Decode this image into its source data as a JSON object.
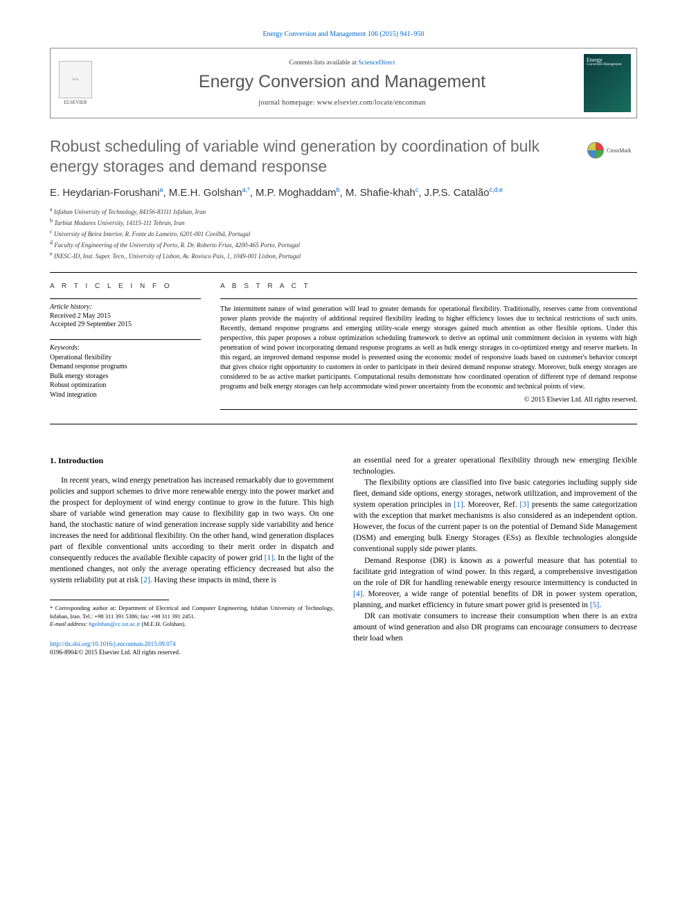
{
  "citation": "Energy Conversion and Management 106 (2015) 941–950",
  "header": {
    "contents_prefix": "Contents lists available at ",
    "contents_link": "ScienceDirect",
    "journal_name": "Energy Conversion and Management",
    "homepage_prefix": "journal homepage: ",
    "homepage_url": "www.elsevier.com/locate/enconman",
    "publisher": "ELSEVIER",
    "cover_title": "Energy",
    "cover_sub": "Conversion Management"
  },
  "article": {
    "title": "Robust scheduling of variable wind generation by coordination of bulk energy storages and demand response",
    "crossmark": "CrossMark",
    "authors_html_parts": [
      {
        "name": "E. Heydarian-Forushani",
        "sup": "a"
      },
      {
        "name": "M.E.H. Golshan",
        "sup": "a,*"
      },
      {
        "name": "M.P. Moghaddam",
        "sup": "b"
      },
      {
        "name": "M. Shafie-khah",
        "sup": "c"
      },
      {
        "name": "J.P.S. Catalão",
        "sup": "c,d,e"
      }
    ],
    "affiliations": [
      {
        "sup": "a",
        "text": "Isfahan University of Technology, 84156-83111 Isfahan, Iran"
      },
      {
        "sup": "b",
        "text": "Tarbiat Modares University, 14115-111 Tehran, Iran"
      },
      {
        "sup": "c",
        "text": "University of Beira Interior, R. Fonte do Lameiro, 6201-001 Covilhã, Portugal"
      },
      {
        "sup": "d",
        "text": "Faculty of Engineering of the University of Porto, R. Dr. Roberto Frias, 4200-465 Porto, Portugal"
      },
      {
        "sup": "e",
        "text": "INESC-ID, Inst. Super. Tecn., University of Lisbon, Av. Rovisco Pais, 1, 1049-001 Lisbon, Portugal"
      }
    ]
  },
  "info": {
    "heading": "A R T I C L E   I N F O",
    "history_label": "Article history:",
    "received": "Received 2 May 2015",
    "accepted": "Accepted 29 September 2015",
    "kw_label": "Keywords:",
    "keywords": [
      "Operational flexibility",
      "Demand response programs",
      "Bulk energy storages",
      "Robust optimization",
      "Wind integration"
    ]
  },
  "abstract": {
    "heading": "A B S T R A C T",
    "text": "The intermittent nature of wind generation will lead to greater demands for operational flexibility. Traditionally, reserves came from conventional power plants provide the majority of additional required flexibility leading to higher efficiency losses due to technical restrictions of such units. Recently, demand response programs and emerging utility-scale energy storages gained much attention as other flexible options. Under this perspective, this paper proposes a robust optimization scheduling framework to derive an optimal unit commitment decision in systems with high penetration of wind power incorporating demand response programs as well as bulk energy storages in co-optimized energy and reserve markets. In this regard, an improved demand response model is presented using the economic model of responsive loads based on customer's behavior concept that gives choice right opportunity to customers in order to participate in their desired demand response strategy. Moreover, bulk energy storages are considered to be as active market participants. Computational results demonstrate how coordinated operation of different type of demand response programs and bulk energy storages can help accommodate wind power uncertainty from the economic and technical points of view.",
    "copyright": "© 2015 Elsevier Ltd. All rights reserved."
  },
  "intro": {
    "heading": "1. Introduction",
    "left_paragraphs": [
      "In recent years, wind energy penetration has increased remarkably due to government policies and support schemes to drive more renewable energy into the power market and the prospect for deployment of wind energy continue to grow in the future. This high share of variable wind generation may cause to flexibility gap in two ways. On one hand, the stochastic nature of wind generation increase supply side variability and hence increases the need for additional flexibility. On the other hand, wind generation displaces part of flexible conventional units according to their merit order in dispatch and consequently reduces the available flexible capacity of power grid [1]. In the light of the mentioned changes, not only the average operating efficiency decreased but also the system reliability put at risk [2]. Having these impacts in mind, there is"
    ],
    "right_paragraphs": [
      "an essential need for a greater operational flexibility through new emerging flexible technologies.",
      "The flexibility options are classified into five basic categories including supply side fleet, demand side options, energy storages, network utilization, and improvement of the system operation principles in [1]. Moreover, Ref. [3] presents the same categorization with the exception that market mechanisms is also considered as an independent option. However, the focus of the current paper is on the potential of Demand Side Management (DSM) and emerging bulk Energy Storages (ESs) as flexible technologies alongside conventional supply side power plants.",
      "Demand Response (DR) is known as a powerful measure that has potential to facilitate grid integration of wind power. In this regard, a comprehensive investigation on the role of DR for handling renewable energy resource intermittency is conducted in [4]. Moreover, a wide range of potential benefits of DR in power system operation, planning, and market efficiency in future smart power grid is presented in [5].",
      "DR can motivate consumers to increase their consumption when there is an extra amount of wind generation and also DR programs can encourage consumers to decrease their load when"
    ],
    "refs_format": {
      "color": "#0066cc"
    }
  },
  "footnotes": {
    "corr": "* Corresponding author at: Department of Electrical and Computer Engineering, Isfahan University of Technology, Isfahan, Iran. Tel.: +98 311 391 5386; fax: +98 311 391 2451.",
    "email_label": "E-mail address:",
    "email": "hgolshan@cc.iut.ac.ir",
    "email_who": "(M.E.H. Golshan)."
  },
  "footer": {
    "doi": "http://dx.doi.org/10.1016/j.enconman.2015.09.074",
    "issn_line": "0196-8904/© 2015 Elsevier Ltd. All rights reserved."
  },
  "colors": {
    "link": "#0066cc",
    "title_gray": "#6a6a6a",
    "text": "#000000"
  }
}
